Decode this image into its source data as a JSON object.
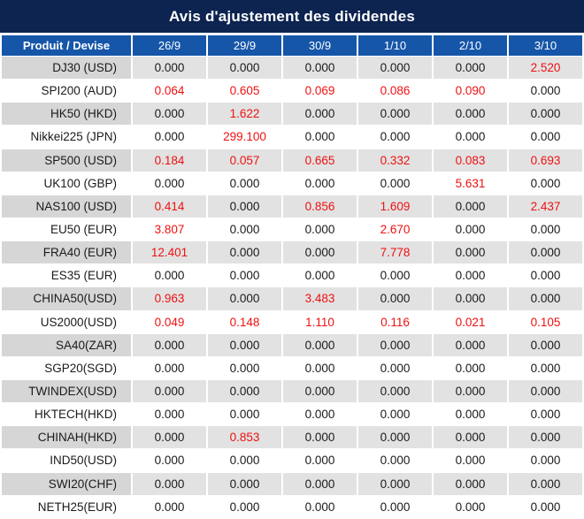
{
  "title": "Avis d'ajustement des dividendes",
  "table": {
    "columns": [
      "Produit / Devise",
      "26/9",
      "29/9",
      "30/9",
      "1/10",
      "2/10",
      "3/10"
    ],
    "rows": [
      {
        "label": "DJ30 (USD)",
        "values": [
          "0.000",
          "0.000",
          "0.000",
          "0.000",
          "0.000",
          "2.520"
        ],
        "red_indices": [
          5
        ]
      },
      {
        "label": "SPI200 (AUD)",
        "values": [
          "0.064",
          "0.605",
          "0.069",
          "0.086",
          "0.090",
          "0.000"
        ],
        "red_indices": [
          0,
          1,
          2,
          3,
          4
        ]
      },
      {
        "label": "HK50 (HKD)",
        "values": [
          "0.000",
          "1.622",
          "0.000",
          "0.000",
          "0.000",
          "0.000"
        ],
        "red_indices": [
          1
        ]
      },
      {
        "label": "Nikkei225 (JPN)",
        "values": [
          "0.000",
          "299.100",
          "0.000",
          "0.000",
          "0.000",
          "0.000"
        ],
        "red_indices": [
          1
        ]
      },
      {
        "label": "SP500 (USD)",
        "values": [
          "0.184",
          "0.057",
          "0.665",
          "0.332",
          "0.083",
          "0.693"
        ],
        "red_indices": [
          0,
          1,
          2,
          3,
          4,
          5
        ]
      },
      {
        "label": "UK100 (GBP)",
        "values": [
          "0.000",
          "0.000",
          "0.000",
          "0.000",
          "5.631",
          "0.000"
        ],
        "red_indices": [
          4
        ]
      },
      {
        "label": "NAS100 (USD)",
        "values": [
          "0.414",
          "0.000",
          "0.856",
          "1.609",
          "0.000",
          "2.437"
        ],
        "red_indices": [
          0,
          2,
          3,
          5
        ]
      },
      {
        "label": "EU50 (EUR)",
        "values": [
          "3.807",
          "0.000",
          "0.000",
          "2.670",
          "0.000",
          "0.000"
        ],
        "red_indices": [
          0,
          3
        ]
      },
      {
        "label": "FRA40 (EUR)",
        "values": [
          "12.401",
          "0.000",
          "0.000",
          "7.778",
          "0.000",
          "0.000"
        ],
        "red_indices": [
          0,
          3
        ]
      },
      {
        "label": "ES35 (EUR)",
        "values": [
          "0.000",
          "0.000",
          "0.000",
          "0.000",
          "0.000",
          "0.000"
        ],
        "red_indices": []
      },
      {
        "label": "CHINA50(USD)",
        "values": [
          "0.963",
          "0.000",
          "3.483",
          "0.000",
          "0.000",
          "0.000"
        ],
        "red_indices": [
          0,
          2
        ]
      },
      {
        "label": "US2000(USD)",
        "values": [
          "0.049",
          "0.148",
          "1.110",
          "0.116",
          "0.021",
          "0.105"
        ],
        "red_indices": [
          0,
          1,
          2,
          3,
          4,
          5
        ]
      },
      {
        "label": "SA40(ZAR)",
        "values": [
          "0.000",
          "0.000",
          "0.000",
          "0.000",
          "0.000",
          "0.000"
        ],
        "red_indices": []
      },
      {
        "label": "SGP20(SGD)",
        "values": [
          "0.000",
          "0.000",
          "0.000",
          "0.000",
          "0.000",
          "0.000"
        ],
        "red_indices": []
      },
      {
        "label": "TWINDEX(USD)",
        "values": [
          "0.000",
          "0.000",
          "0.000",
          "0.000",
          "0.000",
          "0.000"
        ],
        "red_indices": []
      },
      {
        "label": "HKTECH(HKD)",
        "values": [
          "0.000",
          "0.000",
          "0.000",
          "0.000",
          "0.000",
          "0.000"
        ],
        "red_indices": []
      },
      {
        "label": "CHINAH(HKD)",
        "values": [
          "0.000",
          "0.853",
          "0.000",
          "0.000",
          "0.000",
          "0.000"
        ],
        "red_indices": [
          1
        ]
      },
      {
        "label": "IND50(USD)",
        "values": [
          "0.000",
          "0.000",
          "0.000",
          "0.000",
          "0.000",
          "0.000"
        ],
        "red_indices": []
      },
      {
        "label": "SWI20(CHF)",
        "values": [
          "0.000",
          "0.000",
          "0.000",
          "0.000",
          "0.000",
          "0.000"
        ],
        "red_indices": []
      },
      {
        "label": "NETH25(EUR)",
        "values": [
          "0.000",
          "0.000",
          "0.000",
          "0.000",
          "0.000",
          "0.000"
        ],
        "red_indices": []
      }
    ]
  },
  "colors": {
    "title_bg": "#0d2350",
    "header_bg": "#1656a9",
    "striped_label_bg": "#d6d6d6",
    "striped_value_bg": "#e2e2e2",
    "highlight_red": "#ee1111",
    "text": "#1a1a1a"
  }
}
